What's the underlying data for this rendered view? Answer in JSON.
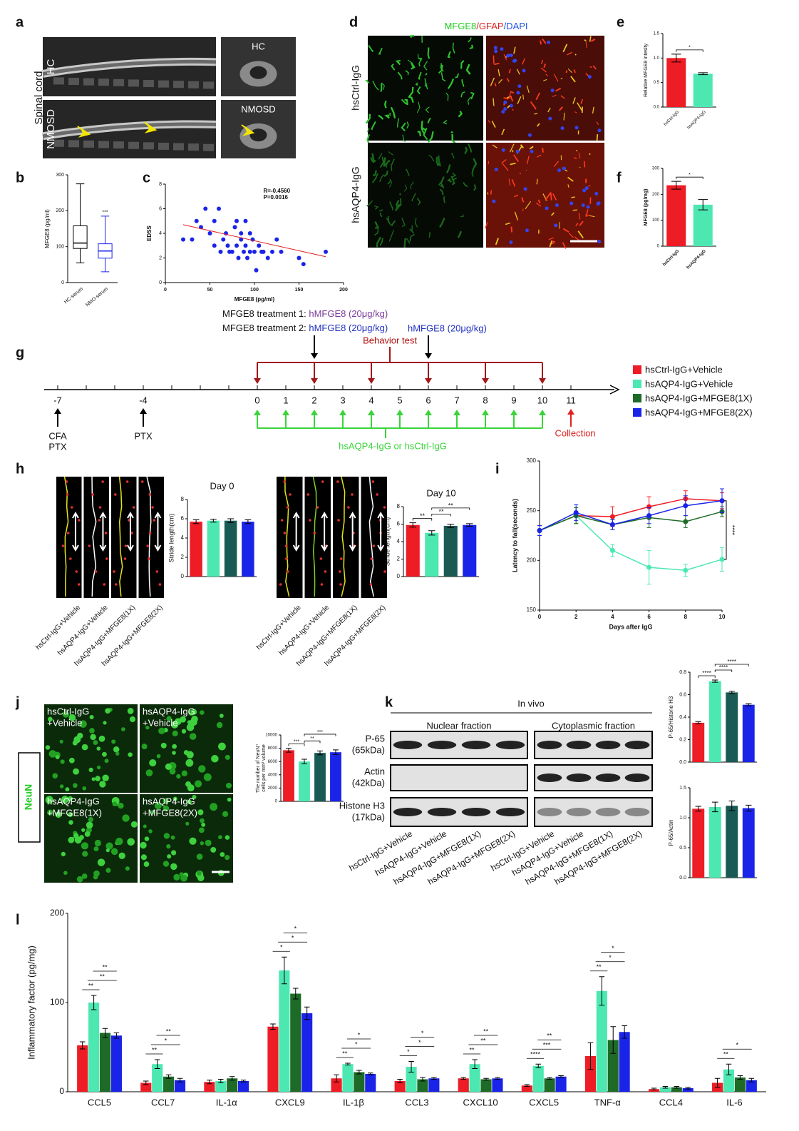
{
  "panel_labels": [
    "a",
    "b",
    "c",
    "d",
    "e",
    "f",
    "g",
    "h",
    "i",
    "j",
    "k",
    "l"
  ],
  "panel_a": {
    "side_label": "Spinal cord",
    "rows": [
      "HC",
      "NMOSD"
    ],
    "insets": [
      "HC",
      "NMOSD"
    ]
  },
  "panel_d": {
    "stains": [
      {
        "text": "MFGE8",
        "color": "#22cc22"
      },
      {
        "text": "/GFAP",
        "color": "#dd2222"
      },
      {
        "text": "/DAPI",
        "color": "#2255dd"
      }
    ],
    "rows": [
      "hsCtrl-IgG",
      "hsAQP4-IgG"
    ]
  },
  "panel_g": {
    "treatment_1": {
      "label": "MFGE8 treatment 1: ",
      "dose": "hMFGE8 (20μg/kg)"
    },
    "treatment_2": {
      "label": "MFGE8 treatment 2: ",
      "dose": "hMFGE8 (20μg/kg)"
    },
    "dose_2b": "hMFGE8 (20μg/kg)",
    "behavior": "Behavior test",
    "days": [
      -7,
      -4,
      0,
      1,
      2,
      3,
      4,
      5,
      6,
      7,
      8,
      9,
      10,
      11
    ],
    "induction": [
      [
        "CFA",
        "PTX"
      ],
      [
        "PTX"
      ]
    ],
    "injection": "hsAQP4-IgG or hsCtrl-IgG",
    "collection": "Collection",
    "legend": [
      {
        "label": "hsCtrl-IgG+Vehicle",
        "color": "#ee1c25"
      },
      {
        "label": "hsAQP4-IgG+Vehicle",
        "color": "#4de8b2"
      },
      {
        "label": "hsAQP4-IgG+MFGE8(1X)",
        "color": "#1e6b28"
      },
      {
        "label": "hsAQP4-IgG+MFGE8(2X)",
        "color": "#1a24e8"
      }
    ]
  },
  "panel_j": {
    "marker": "NeuN",
    "tiles": [
      [
        "hsCtrl-IgG",
        "+Vehicle"
      ],
      [
        "hsAQP4-IgG",
        "+Vehicle"
      ],
      [
        "hsAQP4-IgG",
        "+MFGE8(1X)"
      ],
      [
        "hsAQP4-IgG",
        "+MFGE8(2X)"
      ]
    ]
  },
  "panel_k": {
    "title": "In vivo",
    "fractions": [
      "Nuclear fraction",
      "Cytoplasmic fraction"
    ],
    "bands": [
      [
        "P-65",
        "(65kDa)"
      ],
      [
        "Actin",
        "(42kDa)"
      ],
      [
        "Histone H3",
        "(17kDa)"
      ]
    ],
    "lanes": [
      "hsCtrl-IgG+Vehicle",
      "hsAQP4-IgG+Vehicle",
      "hsAQP4-IgG+MFGE8(1X)",
      "hsAQP4-IgG+MFGE8(2X)"
    ]
  },
  "chart_data": [
    {
      "type": "box",
      "y_label": "MFGE8 (pg/ml)",
      "categories": [
        "HC-serum",
        "NMO-serum"
      ],
      "colors": [
        "#000000",
        "#1a24e8"
      ],
      "boxes": {
        "min": [
          55,
          30
        ],
        "q1": [
          95,
          68
        ],
        "median": [
          110,
          88
        ],
        "q3": [
          158,
          108
        ],
        "max": [
          275,
          185
        ]
      },
      "ylim": [
        0,
        300
      ],
      "yticks": [
        0,
        100,
        200,
        300
      ],
      "annotation": "***"
    },
    {
      "type": "scatter",
      "x_label": "MFGE8 (pg/ml)",
      "y_label": "EDSS",
      "annotations": [
        "R=-0.4560",
        "P=0.0016"
      ],
      "color": "#1a24e8",
      "fit_color": "#e02020",
      "x": [
        20,
        30,
        35,
        40,
        45,
        50,
        55,
        55,
        60,
        62,
        65,
        68,
        70,
        72,
        75,
        78,
        80,
        80,
        82,
        85,
        85,
        88,
        90,
        90,
        92,
        95,
        95,
        98,
        100,
        102,
        105,
        108,
        110,
        115,
        120,
        125,
        130,
        150,
        155,
        180
      ],
      "y": [
        3.5,
        3.5,
        5,
        4.5,
        6,
        4,
        3,
        5,
        6,
        2.5,
        3.5,
        4,
        3,
        2.5,
        2.5,
        4.5,
        3,
        5,
        2,
        3.5,
        4,
        2.5,
        3,
        5,
        2,
        4,
        2.5,
        3.5,
        2.5,
        1,
        3,
        2.5,
        2.5,
        2,
        2.5,
        3.5,
        2.5,
        2,
        1.5,
        2.5
      ],
      "fit": {
        "x": [
          20,
          180
        ],
        "y": [
          4.7,
          2.1
        ]
      },
      "xlim": [
        0,
        200
      ],
      "xticks": [
        0,
        50,
        100,
        150,
        200
      ],
      "ylim": [
        0,
        8
      ],
      "yticks": [
        0,
        2,
        4,
        6,
        8
      ]
    },
    {
      "type": "bar",
      "y_label": "Relative MFGE8 intesity",
      "categories": [
        "hsCtrl-IgG",
        "hsAQP4-IgG"
      ],
      "values": [
        1.0,
        0.68
      ],
      "errors": [
        0.08,
        0.02
      ],
      "colors": [
        "#ee1c25",
        "#4de8b2"
      ],
      "ylim": [
        0,
        1.5
      ],
      "yticks": [
        {
          "value": 0,
          "label": "0.0"
        },
        0.5,
        {
          "value": 1,
          "label": "1.0"
        },
        1.5
      ],
      "sig": [
        {
          "text": "*",
          "from": 0,
          "to": 1
        }
      ]
    },
    {
      "type": "bar",
      "y_label": "MFGE8 (pg/mg)",
      "categories": [
        "hsCtrl-IgG",
        "hsAQP4-IgG"
      ],
      "values": [
        235,
        160
      ],
      "errors": [
        15,
        20
      ],
      "colors": [
        "#ee1c25",
        "#4de8b2"
      ],
      "ylim": [
        0,
        300
      ],
      "yticks": [
        0,
        100,
        200,
        300
      ],
      "sig": [
        {
          "text": "*",
          "from": 0,
          "to": 1
        }
      ]
    },
    {
      "type": "bar",
      "title": "Day 0",
      "y_label": "Stride length(cm)",
      "categories": [
        "hsCtrl-IgG+Vehicle",
        "hsAQP4-IgG+Vehicle",
        "hsAQP4-IgG+MFGE8(1X)",
        "hsAQP4-IgG+MFGE8(2X)"
      ],
      "values": [
        5.7,
        5.8,
        5.8,
        5.7
      ],
      "errors": [
        0.2,
        0.15,
        0.2,
        0.2
      ],
      "colors": [
        "#ee1c25",
        "#4de8b2",
        "#1a5a55",
        "#1a24e8"
      ],
      "ylim": [
        0,
        8
      ],
      "yticks": [
        0,
        2,
        4,
        6,
        8
      ]
    },
    {
      "type": "bar",
      "title": "Day 10",
      "y_label": "Stride length(cm)",
      "categories": [
        "hsCtrl-IgG+Vehicle",
        "hsAQP4-IgG+Vehicle",
        "hsAQP4-IgG+MFGE8(1X)",
        "hsAQP4-IgG+MFGE8(2X)"
      ],
      "values": [
        5.9,
        5.0,
        5.8,
        5.9
      ],
      "errors": [
        0.25,
        0.25,
        0.2,
        0.15
      ],
      "colors": [
        "#ee1c25",
        "#4de8b2",
        "#1a5a55",
        "#1a24e8"
      ],
      "ylim": [
        0,
        8
      ],
      "yticks": [
        0,
        2,
        4,
        6,
        8
      ],
      "sig": [
        {
          "text": "**",
          "from": 0,
          "to": 1
        },
        {
          "text": "**",
          "from": 1,
          "to": 2
        },
        {
          "text": "**",
          "from": 1,
          "to": 3
        }
      ]
    },
    {
      "type": "line",
      "x_label": "Days after IgG",
      "y_label": "Latency to fall(seconds)",
      "annotation": "****",
      "x": [
        0,
        2,
        4,
        6,
        8,
        10
      ],
      "xlim": [
        0,
        10
      ],
      "xticks": [
        0,
        2,
        4,
        6,
        8,
        10
      ],
      "ylim": [
        150,
        300
      ],
      "yticks": [
        150,
        200,
        250,
        300
      ],
      "series": [
        {
          "color": "#ee1c25",
          "values": [
            230,
            245,
            244,
            254,
            262,
            260
          ],
          "errors": [
            5,
            8,
            10,
            10,
            8,
            8
          ]
        },
        {
          "color": "#4de8b2",
          "values": [
            230,
            245,
            210,
            193,
            190,
            201
          ],
          "errors": [
            5,
            8,
            6,
            17,
            6,
            12
          ]
        },
        {
          "color": "#1e6b28",
          "values": [
            230,
            245,
            236,
            243,
            239,
            249
          ],
          "errors": [
            5,
            8,
            5,
            10,
            6,
            5
          ]
        },
        {
          "color": "#1a24e8",
          "values": [
            230,
            248,
            236,
            245,
            255,
            260
          ],
          "errors": [
            5,
            8,
            5,
            8,
            10,
            12
          ]
        }
      ]
    },
    {
      "type": "bar",
      "y_label": [
        "The number of NeuN⁺",
        "cells per mm³ volume"
      ],
      "values": [
        7700,
        6000,
        7300,
        7400
      ],
      "errors": [
        300,
        350,
        300,
        350
      ],
      "colors": [
        "#ee1c25",
        "#4de8b2",
        "#1a5a55",
        "#1a24e8"
      ],
      "ylim": [
        0,
        10000
      ],
      "yticks": [
        0,
        2000,
        4000,
        6000,
        8000,
        10000
      ],
      "sig": [
        {
          "text": "***",
          "from": 0,
          "to": 1
        },
        {
          "text": "**",
          "from": 1,
          "to": 2
        },
        {
          "text": "***",
          "from": 1,
          "to": 3
        }
      ]
    },
    {
      "type": "bar",
      "y_label": "P-65/Histone H3",
      "values": [
        0.35,
        0.72,
        0.62,
        0.51
      ],
      "errors": [
        0.01,
        0.01,
        0.01,
        0.01
      ],
      "colors": [
        "#ee1c25",
        "#4de8b2",
        "#1a5a55",
        "#1a24e8"
      ],
      "ylim": [
        0,
        0.8
      ],
      "yticks": [
        {
          "value": 0,
          "label": "0.0"
        },
        0.2,
        0.4,
        0.6,
        0.8
      ],
      "sig": [
        {
          "text": "****",
          "from": 0,
          "to": 1
        },
        {
          "text": "****",
          "from": 1,
          "to": 2
        },
        {
          "text": "****",
          "from": 1,
          "to": 3
        }
      ]
    },
    {
      "type": "bar",
      "y_label": "P-65/Actin",
      "values": [
        1.15,
        1.18,
        1.2,
        1.16
      ],
      "errors": [
        0.04,
        0.08,
        0.08,
        0.05
      ],
      "colors": [
        "#ee1c25",
        "#4de8b2",
        "#1a5a55",
        "#1a24e8"
      ],
      "ylim": [
        0,
        1.5
      ],
      "yticks": [
        {
          "value": 0,
          "label": "0.0"
        },
        0.5,
        {
          "value": 1,
          "label": "1.0"
        },
        1.5
      ]
    },
    {
      "type": "grouped_bar",
      "y_label": "Inflammatory factor (pg/mg)",
      "categories": [
        "CCL5",
        "CCL7",
        "IL-1α",
        "CXCL9",
        "IL-1β",
        "CCL3",
        "CXCL10",
        "CXCL5",
        "TNF-α",
        "CCL4",
        "IL-6"
      ],
      "ylim": [
        0,
        200
      ],
      "yticks": [
        0,
        100,
        200
      ],
      "series": [
        {
          "color": "#ee1c25",
          "values": [
            52,
            10,
            11,
            73,
            15,
            12,
            15,
            7,
            40,
            3,
            10
          ],
          "errors": [
            4,
            2,
            2,
            3,
            4,
            2,
            1,
            1,
            15,
            1,
            5
          ]
        },
        {
          "color": "#4de8b2",
          "values": [
            100,
            31,
            12,
            136,
            31,
            28,
            31,
            29,
            113,
            5,
            25
          ],
          "errors": [
            8,
            5,
            2,
            15,
            1,
            6,
            5,
            2,
            16,
            1,
            6
          ]
        },
        {
          "color": "#1e6b28",
          "values": [
            66,
            17,
            15,
            110,
            22,
            14,
            14,
            15,
            58,
            5,
            16
          ],
          "errors": [
            5,
            2,
            2,
            6,
            2,
            2,
            1,
            1,
            15,
            1,
            2
          ]
        },
        {
          "color": "#1a24e8",
          "values": [
            63,
            13,
            12,
            88,
            20,
            15,
            15,
            17,
            67,
            4,
            13
          ],
          "errors": [
            3,
            2,
            1,
            7,
            1,
            1,
            1,
            1,
            7,
            1,
            2
          ]
        }
      ],
      "stars": [
        [
          "**",
          "**",
          "**"
        ],
        [
          "**",
          "*",
          "**"
        ],
        [],
        [
          "*",
          "*",
          "*"
        ],
        [
          "**",
          "*",
          "*"
        ],
        [
          "*",
          "*",
          "*"
        ],
        [
          "**",
          "**",
          "**"
        ],
        [
          "****",
          "***",
          "**"
        ],
        [
          "**",
          "*",
          "*"
        ],
        [],
        [
          "**",
          "*"
        ]
      ]
    }
  ]
}
